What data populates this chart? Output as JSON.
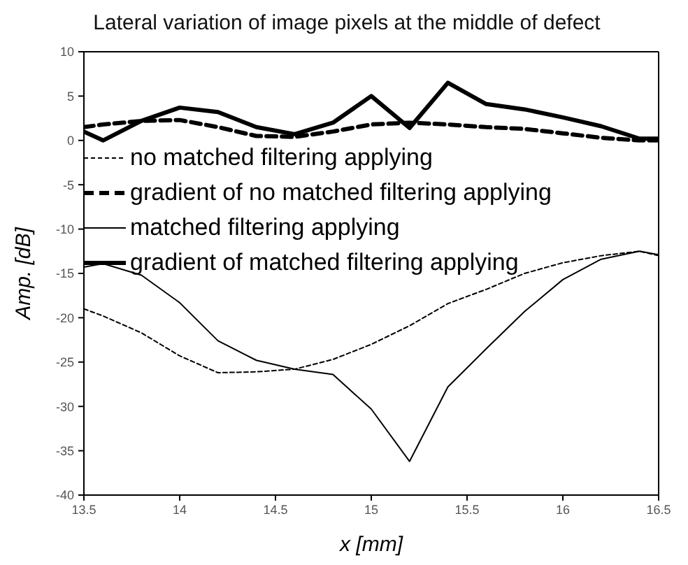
{
  "chart_data": {
    "type": "line",
    "title": "Lateral variation of image pixels at the middle of defect",
    "xlabel": "x [mm]",
    "ylabel": "Amp. [dB]",
    "x": [
      13.5,
      13.6,
      13.8,
      14.0,
      14.2,
      14.4,
      14.6,
      14.8,
      15.0,
      15.2,
      15.4,
      15.6,
      15.8,
      16.0,
      16.2,
      16.4,
      16.5
    ],
    "series": [
      {
        "name": "no matched filtering applying",
        "color": "#000000",
        "line_style": "dotted",
        "values": [
          -19,
          -19.8,
          -21.7,
          -24.3,
          -26.2,
          -26.1,
          -25.8,
          -24.7,
          -23,
          -20.9,
          -18.4,
          -16.8,
          -15,
          -13.8,
          -13,
          -12.5,
          -13
        ]
      },
      {
        "name": "gradient of no matched filtering applying",
        "color": "#000000",
        "line_style": "dashed",
        "values": [
          1.5,
          1.8,
          2.2,
          2.3,
          1.5,
          0.5,
          0.4,
          1,
          1.8,
          2,
          1.8,
          1.5,
          1.3,
          0.8,
          0.3,
          0,
          0
        ]
      },
      {
        "name": "matched filtering applying",
        "color": "#000000",
        "line_style": "solid",
        "values": [
          -14.3,
          -13.9,
          -15.2,
          -18.3,
          -22.6,
          -24.8,
          -25.8,
          -26.4,
          -30.3,
          -36.2,
          -27.8,
          -23.5,
          -19.3,
          -15.7,
          -13.4,
          -12.5,
          -12.9
        ]
      },
      {
        "name": "gradient of matched filtering applying",
        "color": "#000000",
        "line_style": "solid",
        "values": [
          1,
          0,
          2.2,
          3.7,
          3.2,
          1.5,
          0.7,
          2,
          5,
          1.4,
          6.5,
          4.1,
          3.5,
          2.6,
          1.6,
          0.2,
          0.2
        ]
      }
    ],
    "xlim": [
      13.5,
      16.5
    ],
    "xticks": [
      13.5,
      14,
      14.5,
      15,
      15.5,
      16,
      16.5
    ],
    "ylim": [
      -40,
      10
    ],
    "yticks": [
      -40,
      -35,
      -30,
      -25,
      -20,
      -15,
      -10,
      -5,
      0,
      5,
      10
    ],
    "grid": false,
    "legend": "top left",
    "marker": "none"
  }
}
